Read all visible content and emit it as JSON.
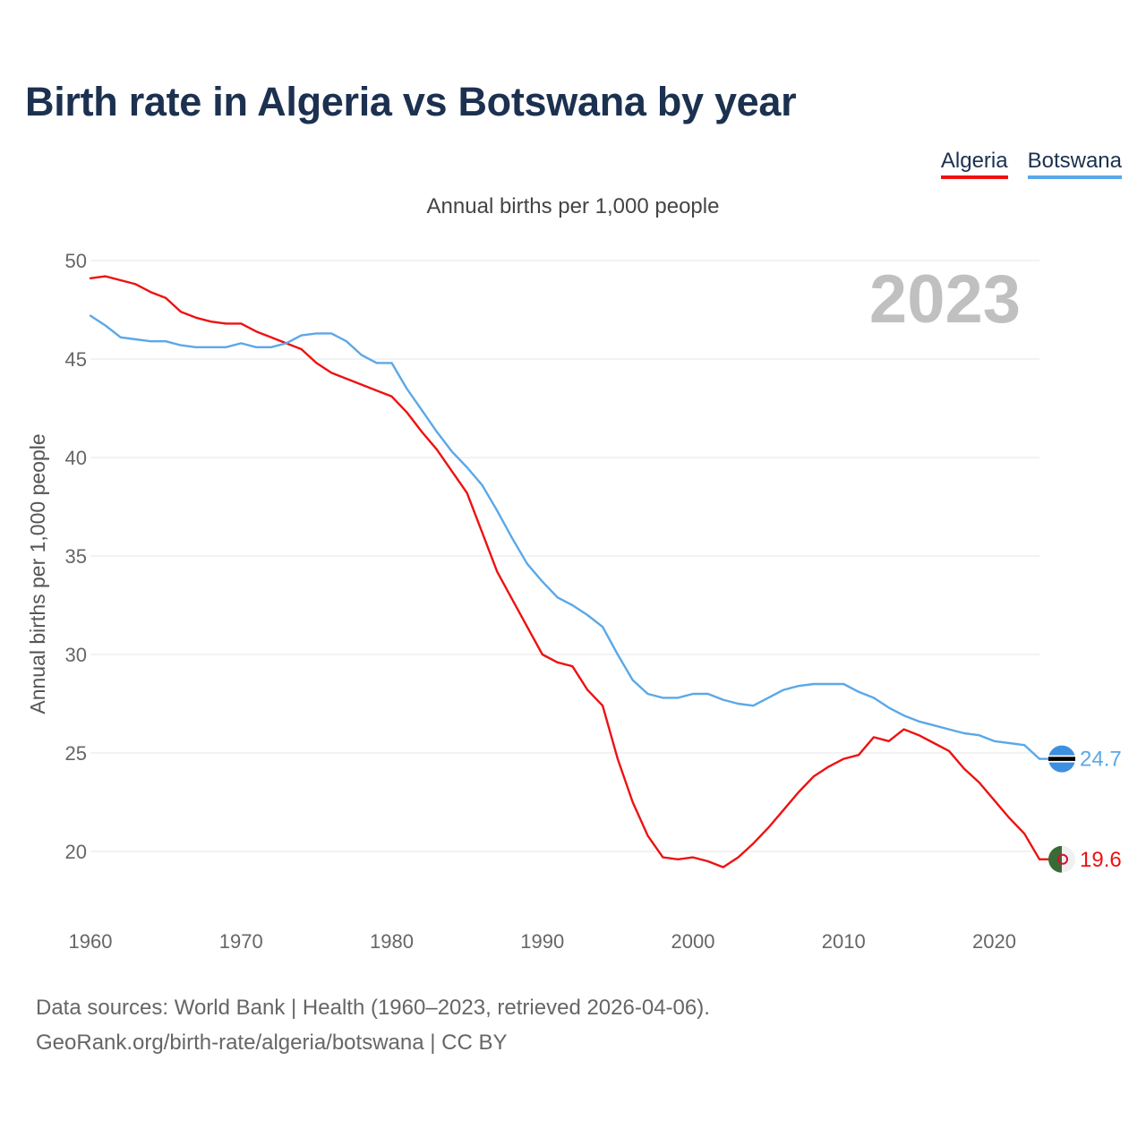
{
  "title": "Birth rate in Algeria vs Botswana by year",
  "subtitle": "Annual births per 1,000 people",
  "year_display": "2023",
  "legend": [
    {
      "label": "Algeria",
      "color": "#ee1111"
    },
    {
      "label": "Botswana",
      "color": "#5aa8e8"
    }
  ],
  "sources": {
    "line1": "Data sources: World Bank | Health (1960–2023, retrieved 2026-04-06).",
    "line2": "GeoRank.org/birth-rate/algeria/botswana | CC BY"
  },
  "flags": {
    "algeria": {
      "icon": "algeria-flag-icon",
      "colors": [
        "#3a6a35",
        "#f0f0f0",
        "#d21034"
      ]
    },
    "botswana": {
      "icon": "botswana-flag-icon",
      "colors": [
        "#3d8fe0",
        "#ffffff",
        "#000000"
      ]
    }
  },
  "chart_data": {
    "type": "line",
    "ylabel": "Annual births per 1,000 people",
    "xlim": [
      1960,
      2023
    ],
    "ylim": [
      20,
      50
    ],
    "yticks": [
      20,
      25,
      30,
      35,
      40,
      45,
      50
    ],
    "xticks": [
      1960,
      1970,
      1980,
      1990,
      2000,
      2010,
      2020
    ],
    "grid": true,
    "legend_position": "top-right",
    "x": [
      1960,
      1961,
      1962,
      1963,
      1964,
      1965,
      1966,
      1967,
      1968,
      1969,
      1970,
      1971,
      1972,
      1973,
      1974,
      1975,
      1976,
      1977,
      1978,
      1979,
      1980,
      1981,
      1982,
      1983,
      1984,
      1985,
      1986,
      1987,
      1988,
      1989,
      1990,
      1991,
      1992,
      1993,
      1994,
      1995,
      1996,
      1997,
      1998,
      1999,
      2000,
      2001,
      2002,
      2003,
      2004,
      2005,
      2006,
      2007,
      2008,
      2009,
      2010,
      2011,
      2012,
      2013,
      2014,
      2015,
      2016,
      2017,
      2018,
      2019,
      2020,
      2021,
      2022,
      2023
    ],
    "series": [
      {
        "name": "Algeria",
        "color": "#ee1111",
        "end_label": "19.6",
        "values": [
          49.1,
          49.2,
          49.0,
          48.8,
          48.4,
          48.1,
          47.4,
          47.1,
          46.9,
          46.8,
          46.8,
          46.4,
          46.1,
          45.8,
          45.5,
          44.8,
          44.3,
          44.0,
          43.7,
          43.4,
          43.1,
          42.3,
          41.3,
          40.4,
          39.3,
          38.2,
          36.2,
          34.2,
          32.8,
          31.4,
          30.0,
          29.6,
          29.4,
          28.2,
          27.4,
          24.7,
          22.5,
          20.8,
          19.7,
          19.6,
          19.7,
          19.5,
          19.2,
          19.7,
          20.4,
          21.2,
          22.1,
          23.0,
          23.8,
          24.3,
          24.7,
          24.9,
          25.8,
          25.6,
          26.2,
          25.9,
          25.5,
          25.1,
          24.2,
          23.5,
          22.6,
          21.7,
          20.9,
          19.6
        ]
      },
      {
        "name": "Botswana",
        "color": "#5aa8e8",
        "end_label": "24.7",
        "values": [
          47.2,
          46.7,
          46.1,
          46.0,
          45.9,
          45.9,
          45.7,
          45.6,
          45.6,
          45.6,
          45.8,
          45.6,
          45.6,
          45.8,
          46.2,
          46.3,
          46.3,
          45.9,
          45.2,
          44.8,
          44.8,
          43.5,
          42.4,
          41.3,
          40.3,
          39.5,
          38.6,
          37.3,
          35.9,
          34.6,
          33.7,
          32.9,
          32.5,
          32.0,
          31.4,
          30.0,
          28.7,
          28.0,
          27.8,
          27.8,
          28.0,
          28.0,
          27.7,
          27.5,
          27.4,
          27.8,
          28.2,
          28.4,
          28.5,
          28.5,
          28.5,
          28.1,
          27.8,
          27.3,
          26.9,
          26.6,
          26.4,
          26.2,
          26.0,
          25.9,
          25.6,
          25.5,
          25.4,
          24.7
        ]
      }
    ]
  }
}
